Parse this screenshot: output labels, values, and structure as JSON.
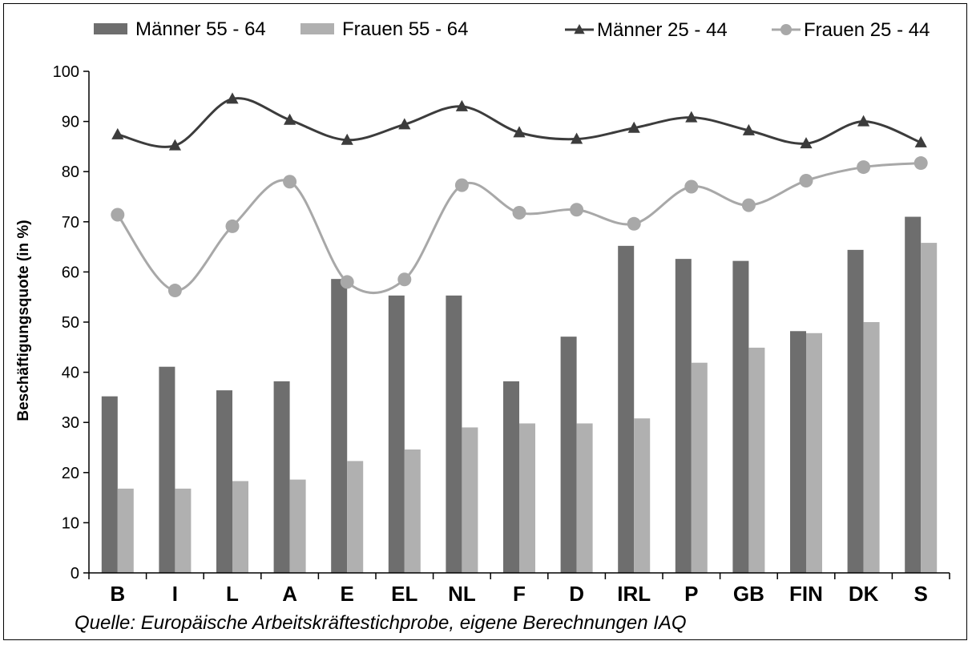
{
  "chart_data": {
    "type": "bar",
    "categories": [
      "B",
      "I",
      "L",
      "A",
      "E",
      "EL",
      "NL",
      "F",
      "D",
      "IRL",
      "P",
      "GB",
      "FIN",
      "DK",
      "S"
    ],
    "ylabel": "Beschäftigungsquote (in %)",
    "ylim": [
      0,
      100
    ],
    "yticks": [
      0,
      10,
      20,
      30,
      40,
      50,
      60,
      70,
      80,
      90,
      100
    ],
    "grid": false,
    "legend_position": "top",
    "source": "Quelle: Europäische Arbeitskräftestichprobe, eigene Berechnungen IAQ",
    "series": [
      {
        "name": "Männer 55 - 64",
        "kind": "bar",
        "color": "#6e6e6e",
        "values": [
          35.2,
          41.1,
          36.4,
          38.2,
          58.6,
          55.3,
          55.3,
          38.2,
          47.1,
          65.2,
          62.6,
          62.2,
          48.2,
          64.4,
          71.0
        ]
      },
      {
        "name": "Frauen 55 - 64",
        "kind": "bar",
        "color": "#b0b0b0",
        "values": [
          16.8,
          16.8,
          18.3,
          18.6,
          22.3,
          24.6,
          29.0,
          29.8,
          29.8,
          30.8,
          41.9,
          44.9,
          47.8,
          50.0,
          65.8
        ]
      },
      {
        "name": "Männer 25 - 44",
        "kind": "line",
        "marker": "triangle",
        "color": "#3c3c3c",
        "values": [
          87.4,
          85.2,
          94.5,
          90.3,
          86.3,
          89.4,
          93.0,
          87.8,
          86.5,
          88.7,
          90.8,
          88.2,
          85.6,
          90.0,
          85.8
        ]
      },
      {
        "name": "Frauen 25 - 44",
        "kind": "line",
        "marker": "circle",
        "color": "#a8a8a8",
        "values": [
          71.4,
          56.3,
          69.1,
          78.0,
          58.0,
          58.5,
          77.3,
          71.8,
          72.4,
          69.6,
          77.0,
          73.3,
          78.2,
          80.9,
          81.7
        ]
      }
    ]
  }
}
